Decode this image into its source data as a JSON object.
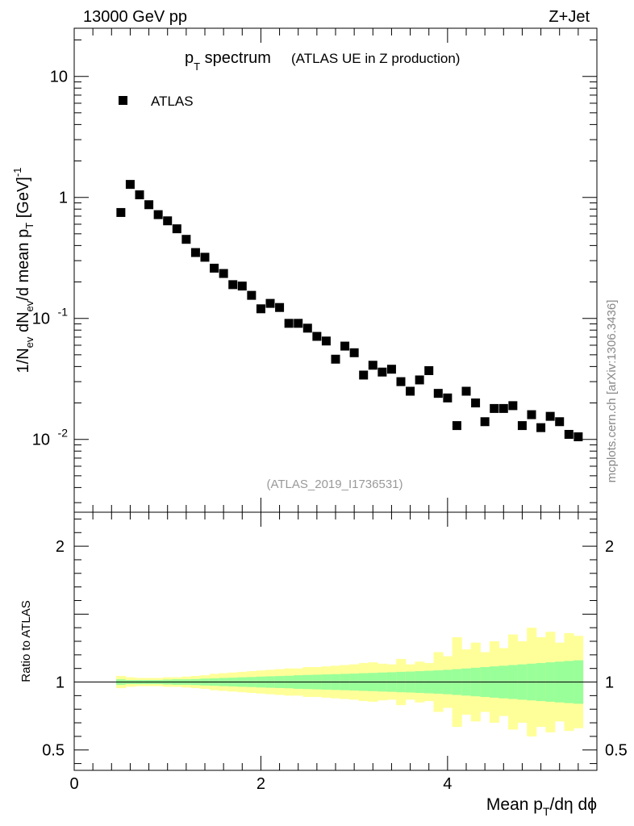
{
  "header": {
    "energy_label": "13000 GeV pp",
    "process_label": "Z+Jet"
  },
  "watermark": "mcplots.cern.ch [arXiv:1306.3436]",
  "analysis_id": "(ATLAS_2019_I1736531)",
  "colors": {
    "band_inner": "#99ff99",
    "band_outer": "#ffff99",
    "marker": "#000000"
  },
  "chart_data": [
    {
      "type": "scatter",
      "title_main": "p",
      "title_sub": "T",
      "title_rest": " spectrum",
      "title_note": "(ATLAS UE in Z production)",
      "ylabel": "1/N_ev dN_ev/d mean p_T [GeV]^-1",
      "ylabel_parts": {
        "a": "1/N",
        "b": "ev",
        "c": " dN",
        "d": "ev",
        "e": "/d mean p",
        "f": "T",
        "g": "  [GeV]",
        "h": "-1"
      },
      "yscale": "log",
      "ylim": [
        0.0025,
        25
      ],
      "xlim": [
        0,
        5.6
      ],
      "y_tick_labels": [
        {
          "value": 10,
          "label": "10"
        },
        {
          "value": 1,
          "label": "1"
        },
        {
          "value": 0.1,
          "label": "10",
          "exp": "-1"
        },
        {
          "value": 0.01,
          "label": "10",
          "exp": "-2"
        }
      ],
      "legend": {
        "position": "top-left",
        "entries": [
          "ATLAS"
        ]
      },
      "series": [
        {
          "name": "ATLAS",
          "x": [
            0.5,
            0.6,
            0.7,
            0.8,
            0.9,
            1.0,
            1.1,
            1.2,
            1.3,
            1.4,
            1.5,
            1.6,
            1.7,
            1.8,
            1.9,
            2.0,
            2.1,
            2.2,
            2.3,
            2.4,
            2.5,
            2.6,
            2.7,
            2.8,
            2.9,
            3.0,
            3.1,
            3.2,
            3.3,
            3.4,
            3.5,
            3.6,
            3.7,
            3.8,
            3.9,
            4.0,
            4.1,
            4.2,
            4.3,
            4.4,
            4.5,
            4.6,
            4.7,
            4.8,
            4.9,
            5.0,
            5.1,
            5.2,
            5.3,
            5.4
          ],
          "y": [
            0.75,
            1.28,
            1.05,
            0.87,
            0.72,
            0.64,
            0.55,
            0.45,
            0.35,
            0.32,
            0.26,
            0.235,
            0.19,
            0.185,
            0.155,
            0.12,
            0.133,
            0.123,
            0.091,
            0.091,
            0.083,
            0.071,
            0.065,
            0.046,
            0.059,
            0.052,
            0.034,
            0.041,
            0.036,
            0.038,
            0.03,
            0.025,
            0.031,
            0.037,
            0.024,
            0.022,
            0.013,
            0.025,
            0.02,
            0.014,
            0.018,
            0.018,
            0.019,
            0.013,
            0.016,
            0.0125,
            0.0155,
            0.014,
            0.011,
            0.0105
          ]
        }
      ]
    },
    {
      "type": "area",
      "ylabel": "Ratio to ATLAS",
      "xlabel": "Mean p_T/dη dϕ",
      "xlabel_parts": {
        "a": "Mean p",
        "b": "T",
        "c": "/dη dϕ"
      },
      "xlim": [
        0,
        5.6
      ],
      "ylim": [
        0.35,
        2.25
      ],
      "x_tick_labels": [
        {
          "value": 0,
          "label": "0"
        },
        {
          "value": 2,
          "label": "2"
        },
        {
          "value": 4,
          "label": "4"
        }
      ],
      "y_tick_labels": [
        {
          "value": 2,
          "label": "2"
        },
        {
          "value": 1,
          "label": "1"
        },
        {
          "value": 0.5,
          "label": "0.5"
        }
      ],
      "reference_line": 1,
      "bin_edges": [
        0.45,
        0.55,
        0.65,
        0.75,
        0.85,
        0.95,
        1.05,
        1.15,
        1.25,
        1.35,
        1.45,
        1.55,
        1.65,
        1.75,
        1.85,
        1.95,
        2.05,
        2.15,
        2.25,
        2.35,
        2.45,
        2.55,
        2.65,
        2.75,
        2.85,
        2.95,
        3.05,
        3.15,
        3.25,
        3.35,
        3.45,
        3.55,
        3.65,
        3.75,
        3.85,
        3.95,
        4.05,
        4.15,
        4.25,
        4.35,
        4.45,
        4.55,
        4.65,
        4.75,
        4.85,
        4.95,
        5.05,
        5.15,
        5.25,
        5.35,
        5.45
      ],
      "inner_band": {
        "name": "stat",
        "half_width": [
          0.02,
          0.015,
          0.015,
          0.015,
          0.015,
          0.018,
          0.02,
          0.02,
          0.022,
          0.025,
          0.027,
          0.03,
          0.032,
          0.035,
          0.037,
          0.04,
          0.042,
          0.044,
          0.046,
          0.05,
          0.052,
          0.054,
          0.056,
          0.058,
          0.06,
          0.062,
          0.065,
          0.067,
          0.07,
          0.072,
          0.075,
          0.077,
          0.08,
          0.083,
          0.086,
          0.09,
          0.095,
          0.1,
          0.105,
          0.11,
          0.115,
          0.12,
          0.125,
          0.13,
          0.135,
          0.14,
          0.145,
          0.15,
          0.155,
          0.16
        ]
      },
      "outer_band": {
        "name": "total",
        "half_width": [
          0.045,
          0.035,
          0.03,
          0.03,
          0.03,
          0.035,
          0.035,
          0.04,
          0.045,
          0.05,
          0.06,
          0.065,
          0.07,
          0.075,
          0.08,
          0.085,
          0.09,
          0.095,
          0.1,
          0.1,
          0.11,
          0.11,
          0.115,
          0.12,
          0.125,
          0.13,
          0.14,
          0.145,
          0.135,
          0.13,
          0.17,
          0.13,
          0.15,
          0.14,
          0.22,
          0.19,
          0.33,
          0.24,
          0.29,
          0.22,
          0.3,
          0.25,
          0.35,
          0.3,
          0.4,
          0.33,
          0.37,
          0.29,
          0.36,
          0.34
        ]
      }
    }
  ]
}
